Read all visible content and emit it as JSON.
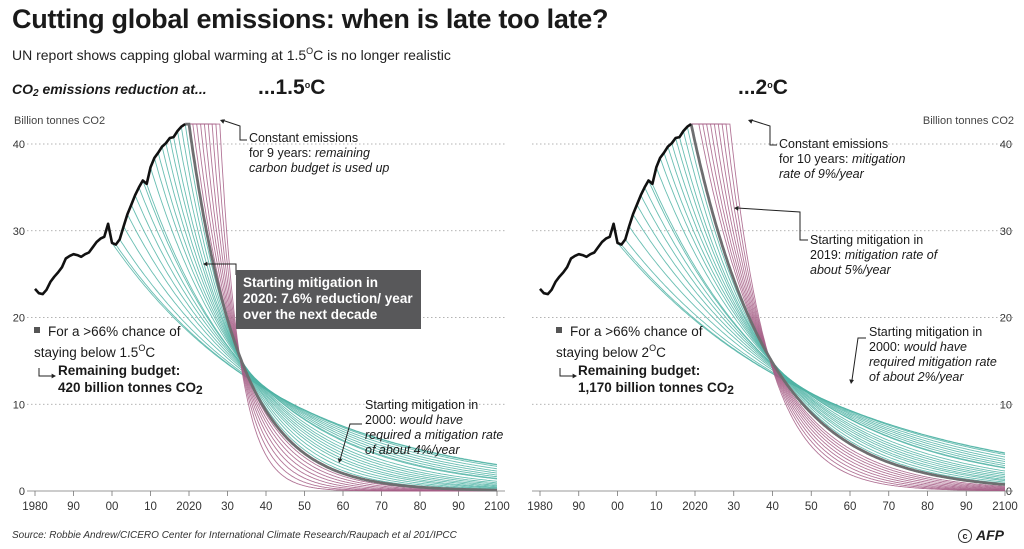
{
  "header": {
    "title": "Cutting global emissions: when is late too late?",
    "subtitle": "UN report shows capping global warming at 1.5°C is no longer realistic",
    "section_label": "CO2 emissions reduction at...",
    "panel_left_temp": "...1.5°C",
    "panel_right_temp": "...2°C"
  },
  "footer": {
    "source": "Source: Robbie Andrew/CICERO Center for International Climate Research/Raupach et al 201/IPCC",
    "credit": "AFP"
  },
  "annotations": {
    "left": {
      "constant": "Constant emissions",
      "constant_2": "for 9 years:",
      "constant_3": "remaining carbon budget is used up",
      "box": "Starting mitigation in 2020: 7.6% reduction/ year over the next decade",
      "chance": "For a >66% chance of staying below 1.5°C",
      "budget_label": "Remaining budget:",
      "budget_value": "420 billion tonnes CO2",
      "m2000": "Starting mitigation in 2000:",
      "m2000_2": "would have required a mitigation rate of about 4%/year"
    },
    "right": {
      "constant": "Constant emissions",
      "constant_2": "for 10 years:",
      "constant_3": "mitigation rate of 9%/year",
      "m2019": "Starting mitigation in 2019:",
      "m2019_2": "mitigation rate of about 5%/year",
      "chance": "For a >66% chance of staying below 2°C",
      "budget_label": "Remaining budget:",
      "budget_value": "1,170 billion tonnes CO2",
      "m2000": "Starting mitigation in 2000:",
      "m2000_2": "would have required mitigation rate of about 2%/year"
    }
  },
  "colors": {
    "historical": "#111111",
    "highlight": "#6e6e70",
    "teal": "#4fb3a4",
    "pink": "#a55d85",
    "grid": "#9a9a9a"
  },
  "chart_data": [
    {
      "type": "line",
      "panel": "1.5C",
      "ylabel": "Billion tonnes CO2",
      "yticks": [
        0,
        10,
        20,
        30,
        40
      ],
      "xticks": [
        "1980",
        "90",
        "00",
        "10",
        "2020",
        "30",
        "40",
        "50",
        "60",
        "70",
        "80",
        "90",
        "2100"
      ],
      "xlim": [
        1980,
        2100
      ],
      "ylim": [
        0,
        43
      ],
      "historical": {
        "x": [
          1980,
          1981,
          1982,
          1983,
          1984,
          1985,
          1986,
          1987,
          1988,
          1989,
          1990,
          1991,
          1992,
          1993,
          1994,
          1995,
          1996,
          1997,
          1998,
          1999,
          2000,
          2001,
          2002,
          2003,
          2004,
          2005,
          2006,
          2007,
          2008,
          2009,
          2010,
          2011,
          2012,
          2013,
          2014,
          2015,
          2016,
          2017,
          2018,
          2019
        ],
        "y": [
          23.3,
          22.8,
          22.7,
          23.2,
          24.1,
          24.7,
          25.2,
          25.8,
          26.8,
          27.1,
          27.3,
          27.2,
          27.0,
          27.3,
          27.5,
          28.1,
          28.7,
          29.1,
          29.3,
          30.8,
          28.6,
          28.4,
          29.0,
          30.5,
          31.9,
          33.0,
          34.1,
          35.0,
          35.8,
          35.4,
          37.3,
          38.4,
          39.0,
          39.7,
          40.1,
          40.7,
          40.8,
          41.5,
          42.0,
          42.3
        ]
      },
      "highlight": {
        "start": 2020,
        "rate": 0.076,
        "x0": 2019,
        "y0": 42.3
      },
      "mitigation_starts": [
        2000,
        2001,
        2002,
        2003,
        2004,
        2005,
        2006,
        2007,
        2008,
        2009,
        2010,
        2011,
        2012,
        2013,
        2014,
        2015,
        2016,
        2017,
        2018,
        2019,
        2021,
        2022,
        2023,
        2024,
        2025,
        2026,
        2027,
        2028
      ]
    },
    {
      "type": "line",
      "panel": "2C",
      "ylabel": "Billion tonnes CO2",
      "yticks": [
        0,
        10,
        20,
        30,
        40
      ],
      "xticks": [
        "1980",
        "90",
        "00",
        "10",
        "2020",
        "30",
        "40",
        "50",
        "60",
        "70",
        "80",
        "90",
        "2100"
      ],
      "xlim": [
        1980,
        2100
      ],
      "ylim": [
        0,
        43
      ],
      "historical": {
        "x": [
          1980,
          1981,
          1982,
          1983,
          1984,
          1985,
          1986,
          1987,
          1988,
          1989,
          1990,
          1991,
          1992,
          1993,
          1994,
          1995,
          1996,
          1997,
          1998,
          1999,
          2000,
          2001,
          2002,
          2003,
          2004,
          2005,
          2006,
          2007,
          2008,
          2009,
          2010,
          2011,
          2012,
          2013,
          2014,
          2015,
          2016,
          2017,
          2018,
          2019
        ],
        "y": [
          23.3,
          22.8,
          22.7,
          23.2,
          24.1,
          24.7,
          25.2,
          25.8,
          26.8,
          27.1,
          27.3,
          27.2,
          27.0,
          27.3,
          27.5,
          28.1,
          28.7,
          29.1,
          29.3,
          30.8,
          28.6,
          28.4,
          29.0,
          30.5,
          31.9,
          33.0,
          34.1,
          35.0,
          35.8,
          35.4,
          37.3,
          38.4,
          39.0,
          39.7,
          40.1,
          40.7,
          40.8,
          41.5,
          42.0,
          42.3
        ]
      },
      "highlight": {
        "start": 2019,
        "rate": 0.05,
        "x0": 2019,
        "y0": 42.3
      },
      "mitigation_starts": [
        2000,
        2001,
        2002,
        2003,
        2004,
        2005,
        2006,
        2007,
        2008,
        2009,
        2010,
        2011,
        2012,
        2013,
        2014,
        2015,
        2016,
        2017,
        2018,
        2021,
        2022,
        2023,
        2024,
        2025,
        2026,
        2027,
        2028,
        2029
      ]
    }
  ]
}
